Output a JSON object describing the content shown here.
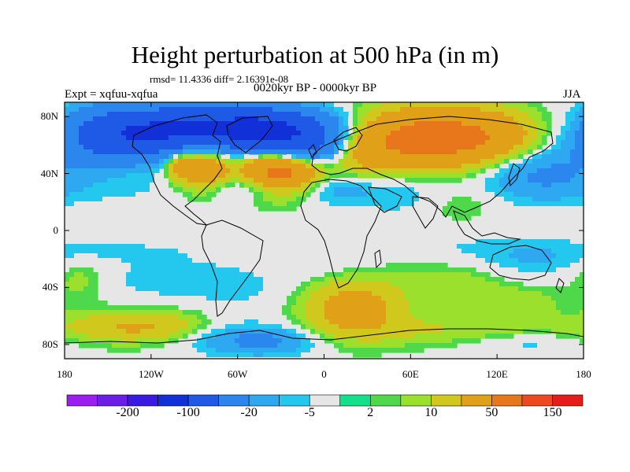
{
  "title": "Height perturbation at 500 hPa (in m)",
  "stats_text": "rmsd= 11.4336 diff= 2.16391e-08",
  "experiment_label": "Expt = xqfuu-xqfua",
  "period_label": "0020kyr BP - 0000kyr BP",
  "season_label": "JJA",
  "map": {
    "projection": "cylindrical-equidistant",
    "lon_range": [
      -180,
      180
    ],
    "lat_range": [
      -90,
      90
    ],
    "background_color": "#e6e6e6",
    "lat_tick_labels": [
      {
        "lat": 80,
        "label": "80N"
      },
      {
        "lat": 40,
        "label": "40N"
      },
      {
        "lat": 0,
        "label": "0"
      },
      {
        "lat": -40,
        "label": "40S"
      },
      {
        "lat": -80,
        "label": "80S"
      }
    ],
    "lon_tick_labels": [
      {
        "lon": -180,
        "label": "180"
      },
      {
        "lon": -120,
        "label": "120W"
      },
      {
        "lon": -60,
        "label": "60W"
      },
      {
        "lon": 0,
        "label": "0"
      },
      {
        "lon": 60,
        "label": "60E"
      },
      {
        "lon": 120,
        "label": "120E"
      },
      {
        "lon": 180,
        "label": "180"
      }
    ]
  },
  "colorbar": {
    "colors": [
      "#9b1df0",
      "#6a1ee6",
      "#3a1ae0",
      "#1230d8",
      "#1f5ae6",
      "#2b87ee",
      "#2fa8f2",
      "#24c8ee",
      "#e6e6e6",
      "#14e08c",
      "#4ed84a",
      "#9ce02e",
      "#d0c81c",
      "#e0a018",
      "#e8761a",
      "#ec4a1e",
      "#e61c1c"
    ],
    "tick_labels": [
      {
        "after_color_index": 1,
        "label": "-200"
      },
      {
        "after_color_index": 3,
        "label": "-100"
      },
      {
        "after_color_index": 5,
        "label": "-20"
      },
      {
        "after_color_index": 7,
        "label": "-5"
      },
      {
        "after_color_index": 9,
        "label": "2"
      },
      {
        "after_color_index": 11,
        "label": "10"
      },
      {
        "after_color_index": 13,
        "label": "50"
      },
      {
        "after_color_index": 15,
        "label": "150"
      }
    ]
  },
  "field_features": [
    {
      "lon": -120,
      "lat": 70,
      "sx": 45,
      "sy": 12,
      "value": -100
    },
    {
      "lon": -150,
      "lat": 58,
      "sx": 22,
      "sy": 10,
      "value": -20
    },
    {
      "lon": -130,
      "lat": 30,
      "sx": 60,
      "sy": 10,
      "value": -5
    },
    {
      "lon": -85,
      "lat": 45,
      "sx": 14,
      "sy": 12,
      "value": 45
    },
    {
      "lon": -100,
      "lat": 47,
      "sx": 7,
      "sy": 6,
      "value": 20
    },
    {
      "lon": -30,
      "lat": 43,
      "sx": 18,
      "sy": 12,
      "value": 70
    },
    {
      "lon": -40,
      "lat": 72,
      "sx": 35,
      "sy": 10,
      "value": -100
    },
    {
      "lon": -15,
      "lat": 58,
      "sx": 20,
      "sy": 9,
      "value": -60
    },
    {
      "lon": -45,
      "lat": 30,
      "sx": 25,
      "sy": 6,
      "value": -15
    },
    {
      "lon": 10,
      "lat": 28,
      "sx": 20,
      "sy": 8,
      "value": -12
    },
    {
      "lon": 80,
      "lat": 65,
      "sx": 48,
      "sy": 14,
      "value": 70
    },
    {
      "lon": 30,
      "lat": 52,
      "sx": 16,
      "sy": 10,
      "value": 12
    },
    {
      "lon": 150,
      "lat": 42,
      "sx": 30,
      "sy": 14,
      "value": -25
    },
    {
      "lon": 175,
      "lat": 72,
      "sx": 16,
      "sy": 10,
      "value": 12
    },
    {
      "lon": 55,
      "lat": 25,
      "sx": 22,
      "sy": 10,
      "value": -8
    },
    {
      "lon": 95,
      "lat": 18,
      "sx": 18,
      "sy": 8,
      "value": 6
    },
    {
      "lon": -140,
      "lat": -15,
      "sx": 50,
      "sy": 7,
      "value": -6
    },
    {
      "lon": -170,
      "lat": -33,
      "sx": 14,
      "sy": 10,
      "value": 8
    },
    {
      "lon": -110,
      "lat": -35,
      "sx": 30,
      "sy": 8,
      "value": -8
    },
    {
      "lon": -60,
      "lat": -40,
      "sx": 30,
      "sy": 12,
      "value": -6
    },
    {
      "lon": -120,
      "lat": -68,
      "sx": 40,
      "sy": 8,
      "value": 25
    },
    {
      "lon": -75,
      "lat": -72,
      "sx": 30,
      "sy": 9,
      "value": -15
    },
    {
      "lon": -40,
      "lat": -78,
      "sx": 25,
      "sy": 7,
      "value": -20
    },
    {
      "lon": 20,
      "lat": -55,
      "sx": 24,
      "sy": 14,
      "value": 30
    },
    {
      "lon": 0,
      "lat": -20,
      "sx": 18,
      "sy": 8,
      "value": -5
    },
    {
      "lon": 95,
      "lat": -35,
      "sx": 30,
      "sy": 10,
      "value": 8
    },
    {
      "lon": 70,
      "lat": -10,
      "sx": 40,
      "sy": 7,
      "value": -4
    },
    {
      "lon": 140,
      "lat": -20,
      "sx": 30,
      "sy": 10,
      "value": -10
    },
    {
      "lon": 130,
      "lat": -50,
      "sx": 28,
      "sy": 7,
      "value": 8
    },
    {
      "lon": 90,
      "lat": -70,
      "sx": 50,
      "sy": 8,
      "value": 10
    },
    {
      "lon": 140,
      "lat": -80,
      "sx": 30,
      "sy": 6,
      "value": -8
    }
  ]
}
